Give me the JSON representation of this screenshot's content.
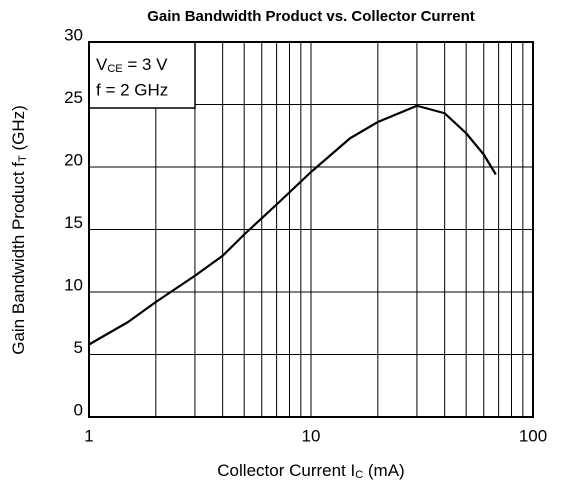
{
  "chart_data": {
    "type": "line",
    "title": "Gain Bandwidth Product vs. Collector Current",
    "xlabel": [
      "Collector Current I",
      "C",
      " (mA)"
    ],
    "ylabel": [
      "Gain Bandwidth Product f",
      "T",
      " (GHz)"
    ],
    "annotations": [
      [
        "V",
        "CE",
        " = 3 V"
      ],
      [
        "f = 2 GHz"
      ]
    ],
    "x": [
      1,
      1.5,
      2,
      3,
      4,
      5,
      7,
      10,
      15,
      20,
      30,
      40,
      50,
      60,
      68
    ],
    "series": [
      {
        "name": "fT",
        "color": "#000000",
        "values": [
          5.8,
          7.6,
          9.2,
          11.3,
          12.9,
          14.6,
          17.0,
          19.6,
          22.3,
          23.6,
          24.9,
          24.3,
          22.7,
          21.0,
          19.4
        ]
      }
    ],
    "xlim": [
      1,
      100
    ],
    "xscale": "log",
    "xticks": [
      1,
      10,
      100
    ],
    "xminor": [
      2,
      3,
      4,
      5,
      6,
      7,
      8,
      9,
      20,
      30,
      40,
      50,
      60,
      70,
      80,
      90
    ],
    "ylim": [
      0,
      30
    ],
    "yticks": [
      0,
      5,
      10,
      15,
      20,
      25,
      30
    ],
    "grid": true
  }
}
